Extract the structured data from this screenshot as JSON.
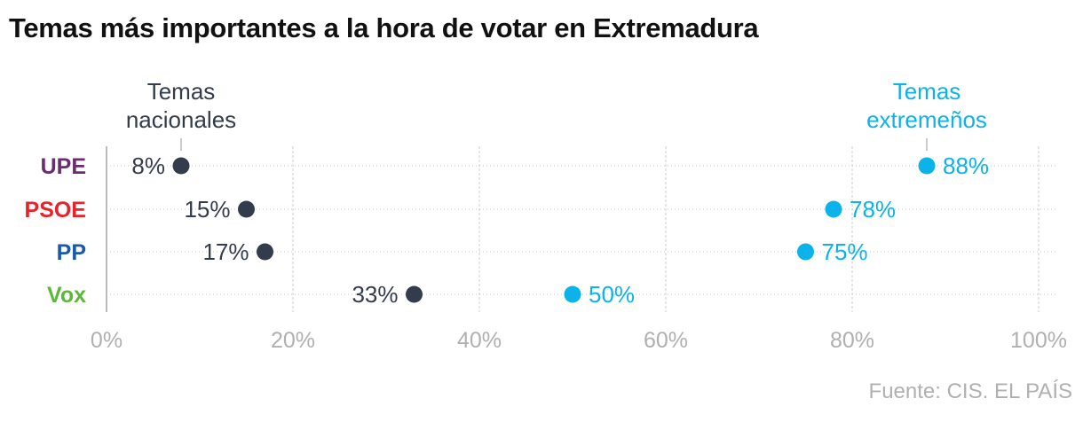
{
  "title": "Temas más importantes a la hora de votar en Extremadura",
  "source": "Fuente: CIS. EL PAÍS",
  "chart_data": {
    "type": "dot-plot",
    "title": "Temas más importantes a la hora de votar en Extremadura",
    "xlim": [
      0,
      100
    ],
    "x_ticks": [
      "0%",
      "20%",
      "40%",
      "60%",
      "80%",
      "100%"
    ],
    "x_tick_values": [
      0,
      20,
      40,
      60,
      80,
      100
    ],
    "grid": true,
    "categories": [
      "UPE",
      "PSOE",
      "PP",
      "Vox"
    ],
    "category_colors": [
      "#6b2c70",
      "#e8222a",
      "#1a5aa8",
      "#5cb83a"
    ],
    "series": [
      {
        "name": "Temas nacionales",
        "name_lines": [
          "Temas",
          "nacionales"
        ],
        "color": "#323c4c",
        "values": [
          8,
          15,
          17,
          33
        ],
        "labels": [
          "8%",
          "15%",
          "17%",
          "33%"
        ]
      },
      {
        "name": "Temas extremeños",
        "name_lines": [
          "Temas",
          "extremeños"
        ],
        "color": "#0bb3ea",
        "values": [
          88,
          78,
          75,
          50
        ],
        "labels": [
          "88%",
          "78%",
          "75%",
          "50%"
        ]
      }
    ]
  }
}
